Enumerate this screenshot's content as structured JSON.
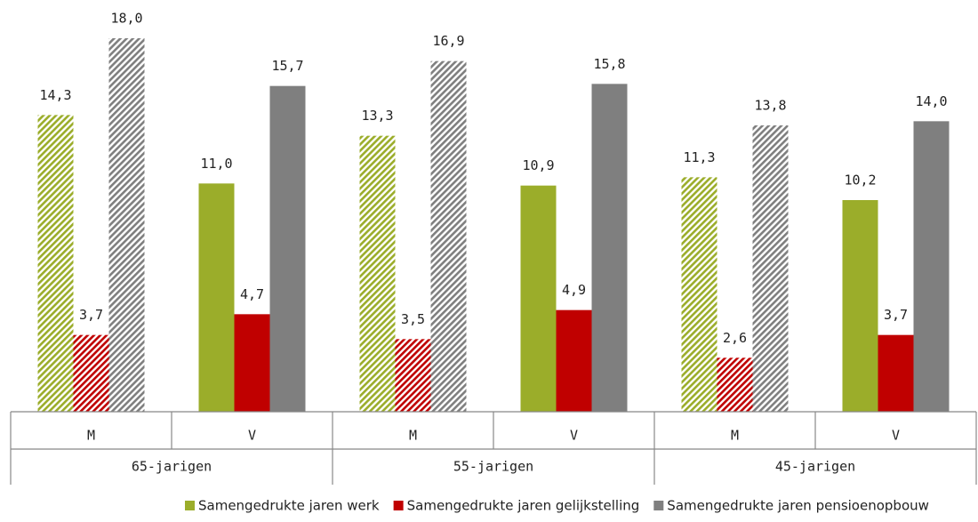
{
  "chart_data": {
    "type": "bar",
    "categories": [
      "M",
      "V",
      "M",
      "V",
      "M",
      "V"
    ],
    "groups": [
      "65-jarigen",
      "55-jarigen",
      "45-jarigen"
    ],
    "hatched": [
      true,
      false,
      true,
      false,
      true,
      false
    ],
    "series": [
      {
        "name": "Samengedrukte jaren werk",
        "color": "#9bad2a",
        "values": [
          14.3,
          11.0,
          13.3,
          10.9,
          11.3,
          10.2
        ],
        "value_labels": [
          "14,3",
          "11,0",
          "13,3",
          "10,9",
          "11,3",
          "10,2"
        ]
      },
      {
        "name": "Samengedrukte jaren gelijkstelling",
        "color": "#c00000",
        "values": [
          3.7,
          4.7,
          3.5,
          4.9,
          2.6,
          3.7
        ],
        "value_labels": [
          "3,7",
          "4,7",
          "3,5",
          "4,9",
          "2,6",
          "3,7"
        ]
      },
      {
        "name": "Samengedrukte jaren pensioenopbouw",
        "color": "#7f7f7f",
        "values": [
          18.0,
          15.7,
          16.9,
          15.8,
          13.8,
          14.0
        ],
        "value_labels": [
          "18,0",
          "15,7",
          "16,9",
          "15,8",
          "13,8",
          "14,0"
        ]
      }
    ],
    "ylim": [
      0,
      18
    ]
  }
}
